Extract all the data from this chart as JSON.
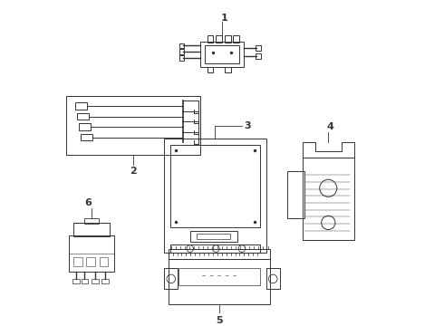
{
  "background_color": "#ffffff",
  "line_color": "#333333",
  "label_color": "#111111",
  "figsize": [
    4.9,
    3.6
  ],
  "dpi": 100,
  "lw": 0.7
}
